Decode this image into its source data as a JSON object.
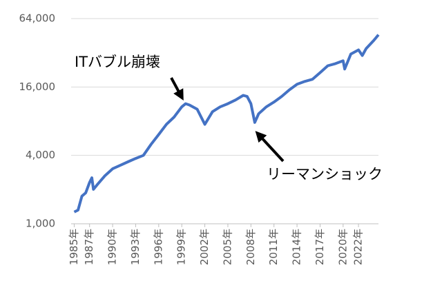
{
  "chart_data": {
    "type": "line",
    "x": [
      1985.0,
      1985.5,
      1986.0,
      1986.5,
      1987.0,
      1987.3,
      1987.5,
      1988.0,
      1989.0,
      1990.0,
      1991.0,
      1992.0,
      1993.0,
      1994.0,
      1995.0,
      1996.0,
      1997.0,
      1998.0,
      1999.0,
      1999.5,
      2000.0,
      2001.0,
      2002.0,
      2003.0,
      2004.0,
      2005.0,
      2006.0,
      2007.0,
      2007.5,
      2008.0,
      2008.5,
      2009.0,
      2010.0,
      2011.0,
      2012.0,
      2013.0,
      2014.0,
      2015.0,
      2016.0,
      2017.0,
      2018.0,
      2019.0,
      2020.0,
      2020.2,
      2021.0,
      2022.0,
      2022.5,
      2023.0,
      2024.0,
      2024.6
    ],
    "series": [
      {
        "color": "#4472c4",
        "values": [
          1270,
          1320,
          1750,
          1870,
          2310,
          2540,
          2010,
          2210,
          2650,
          3050,
          3270,
          3510,
          3760,
          4000,
          5000,
          6100,
          7500,
          8700,
          10700,
          11400,
          11100,
          10200,
          7500,
          9700,
          10700,
          11400,
          12300,
          13500,
          13200,
          11400,
          7800,
          9300,
          10700,
          11800,
          13200,
          15100,
          16900,
          17900,
          18700,
          21400,
          24600,
          25700,
          27200,
          23000,
          31200,
          33900,
          30300,
          34900,
          41200,
          46100
        ]
      }
    ],
    "xlim": [
      1984.6,
      2024.6
    ],
    "xticks": [
      {
        "value": 1985,
        "label": "1985年"
      },
      {
        "value": 1987,
        "label": "1987年"
      },
      {
        "value": 1990,
        "label": "1990年"
      },
      {
        "value": 1993,
        "label": "1993年"
      },
      {
        "value": 1996,
        "label": "1996年"
      },
      {
        "value": 1999,
        "label": "1999年"
      },
      {
        "value": 2002,
        "label": "2002年"
      },
      {
        "value": 2005,
        "label": "2005年"
      },
      {
        "value": 2008,
        "label": "2008年"
      },
      {
        "value": 2011,
        "label": "2011年"
      },
      {
        "value": 2014,
        "label": "2014年"
      },
      {
        "value": 2017,
        "label": "2017年"
      },
      {
        "value": 2020,
        "label": "2020年"
      },
      {
        "value": 2022,
        "label": "2022年"
      }
    ],
    "ylim": [
      1000,
      64000
    ],
    "yticks": [
      {
        "value": 1000,
        "label": "1,000"
      },
      {
        "value": 4000,
        "label": "4,000"
      },
      {
        "value": 16000,
        "label": "16,000"
      },
      {
        "value": 64000,
        "label": "64,000"
      }
    ],
    "y_scale": "log",
    "grid": true,
    "annotations": [
      "ITバブル崩壊",
      "リーマンショック"
    ]
  }
}
